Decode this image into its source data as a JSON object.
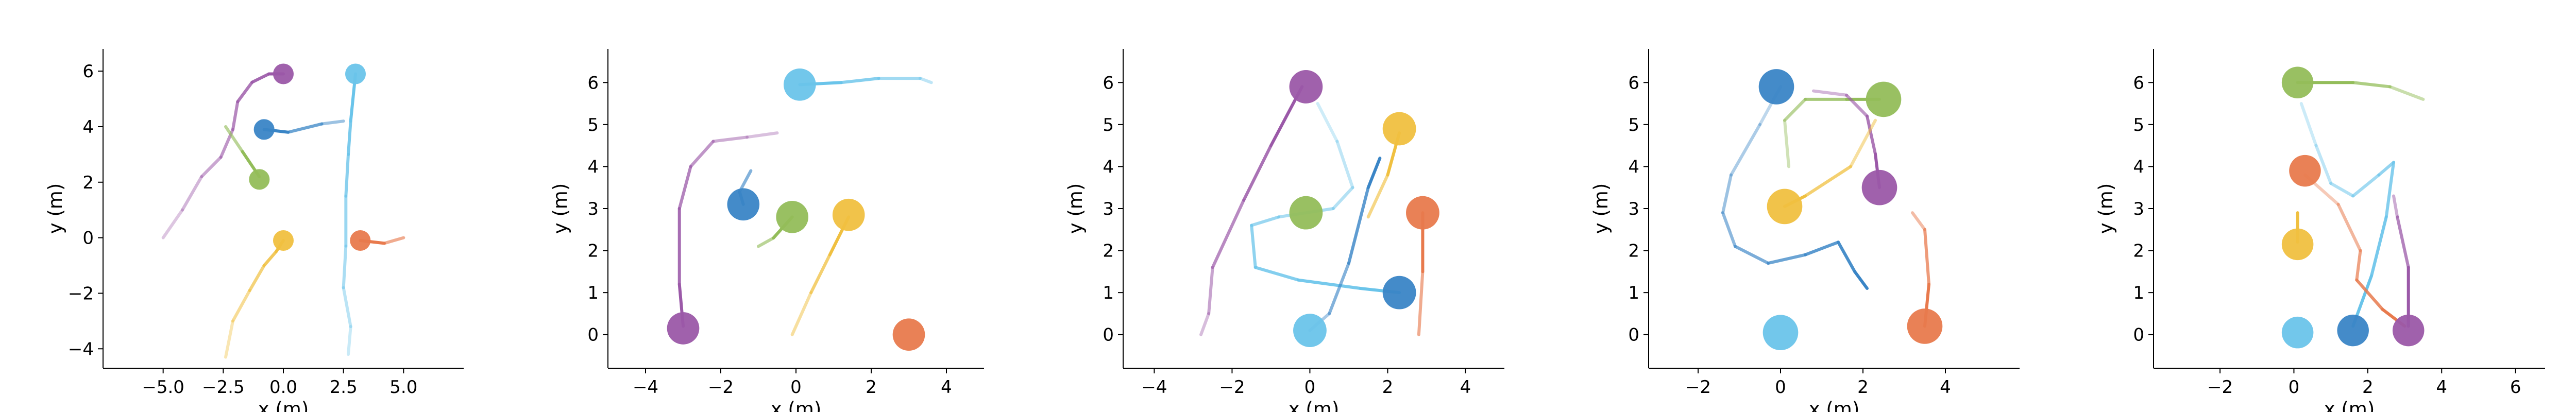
{
  "chart_data": [
    {
      "type": "line",
      "xlabel": "x (m)",
      "ylabel": "y (m)",
      "xlim": [
        -7.5,
        7.5
      ],
      "ylim": [
        -4.7,
        6.8
      ],
      "xticks": [
        -5.0,
        -2.5,
        0.0,
        2.5,
        5.0
      ],
      "xtick_labels": [
        "−5.0",
        "−2.5",
        "0.0",
        "2.5",
        "5.0"
      ],
      "yticks": [
        -4,
        -2,
        0,
        2,
        4,
        6
      ],
      "ytick_labels": [
        "−4",
        "−2",
        "0",
        "2",
        "4",
        "6"
      ],
      "grid": false,
      "agents": [
        {
          "color": "#9b59a8",
          "path": [
            [
              -5.0,
              0.0
            ],
            [
              -4.2,
              1.0
            ],
            [
              -3.4,
              2.2
            ],
            [
              -2.6,
              2.9
            ],
            [
              -2.1,
              3.9
            ],
            [
              -1.9,
              4.9
            ],
            [
              -1.3,
              5.6
            ],
            [
              -0.6,
              5.9
            ],
            [
              0.0,
              5.9
            ]
          ]
        },
        {
          "color": "#6ac4ea",
          "path": [
            [
              2.7,
              -4.2
            ],
            [
              2.8,
              -3.2
            ],
            [
              2.5,
              -1.8
            ],
            [
              2.6,
              -0.3
            ],
            [
              2.6,
              1.5
            ],
            [
              2.7,
              3.0
            ],
            [
              2.8,
              4.2
            ],
            [
              3.0,
              5.9
            ]
          ]
        },
        {
          "color": "#3a85c6",
          "path": [
            [
              2.5,
              4.2
            ],
            [
              1.6,
              4.1
            ],
            [
              0.2,
              3.8
            ],
            [
              -0.8,
              3.9
            ]
          ]
        },
        {
          "color": "#93bd5a",
          "path": [
            [
              -2.4,
              4.0
            ],
            [
              -1.7,
              3.1
            ],
            [
              -1.0,
              2.2
            ]
          ]
        },
        {
          "color": "#f0c040",
          "path": [
            [
              -2.4,
              -4.3
            ],
            [
              -2.1,
              -3.0
            ],
            [
              -1.4,
              -1.9
            ],
            [
              -0.8,
              -1.0
            ],
            [
              -0.3,
              -0.5
            ],
            [
              0.0,
              -0.1
            ]
          ]
        },
        {
          "color": "#e87a4d",
          "path": [
            [
              5.0,
              0.0
            ],
            [
              4.2,
              -0.2
            ],
            [
              3.2,
              -0.1
            ]
          ]
        }
      ],
      "markers": [
        {
          "x": 0.0,
          "y": 5.9,
          "color": "#9b59a8",
          "r": 0.55
        },
        {
          "x": 3.0,
          "y": 5.9,
          "color": "#6ac4ea",
          "r": 0.55
        },
        {
          "x": -0.8,
          "y": 3.9,
          "color": "#3a85c6",
          "r": 0.55
        },
        {
          "x": -1.0,
          "y": 2.1,
          "color": "#93bd5a",
          "r": 0.55
        },
        {
          "x": 0.0,
          "y": -0.1,
          "color": "#f0c040",
          "r": 0.55
        },
        {
          "x": 3.2,
          "y": -0.1,
          "color": "#e87a4d",
          "r": 0.55
        }
      ]
    },
    {
      "type": "line",
      "xlabel": "x (m)",
      "ylabel": "y (m)",
      "xlim": [
        -5.0,
        5.0
      ],
      "ylim": [
        -0.8,
        6.8
      ],
      "xticks": [
        -4,
        -2,
        0,
        2,
        4
      ],
      "xtick_labels": [
        "−4",
        "−2",
        "0",
        "2",
        "4"
      ],
      "yticks": [
        0,
        1,
        2,
        3,
        4,
        5,
        6
      ],
      "ytick_labels": [
        "0",
        "1",
        "2",
        "3",
        "4",
        "5",
        "6"
      ],
      "grid": false,
      "agents": [
        {
          "color": "#6ac4ea",
          "path": [
            [
              3.6,
              6.0
            ],
            [
              3.3,
              6.1
            ],
            [
              2.2,
              6.1
            ],
            [
              1.2,
              6.0
            ],
            [
              0.1,
              5.95
            ]
          ]
        },
        {
          "color": "#9b59a8",
          "path": [
            [
              -0.5,
              4.8
            ],
            [
              -1.3,
              4.7
            ],
            [
              -2.2,
              4.6
            ],
            [
              -2.8,
              4.0
            ],
            [
              -3.1,
              3.0
            ],
            [
              -3.1,
              1.2
            ],
            [
              -3.0,
              0.2
            ]
          ]
        },
        {
          "color": "#3a85c6",
          "path": [
            [
              -1.2,
              3.9
            ],
            [
              -1.5,
              3.4
            ],
            [
              -1.4,
              3.1
            ]
          ]
        },
        {
          "color": "#93bd5a",
          "path": [
            [
              -1.0,
              2.1
            ],
            [
              -0.6,
              2.3
            ],
            [
              -0.1,
              2.8
            ]
          ]
        },
        {
          "color": "#f0c040",
          "path": [
            [
              -0.1,
              0.0
            ],
            [
              0.4,
              1.0
            ],
            [
              0.9,
              1.9
            ],
            [
              1.4,
              2.8
            ]
          ]
        }
      ],
      "markers": [
        {
          "x": 0.1,
          "y": 5.95,
          "color": "#6ac4ea",
          "r": 0.55
        },
        {
          "x": -1.4,
          "y": 3.1,
          "color": "#3a85c6",
          "r": 0.55
        },
        {
          "x": -0.1,
          "y": 2.8,
          "color": "#93bd5a",
          "r": 0.55
        },
        {
          "x": 1.4,
          "y": 2.85,
          "color": "#f0c040",
          "r": 0.55
        },
        {
          "x": -3.0,
          "y": 0.15,
          "color": "#9b59a8",
          "r": 0.55
        },
        {
          "x": 3.0,
          "y": 0.0,
          "color": "#e87a4d",
          "r": 0.55
        }
      ]
    },
    {
      "type": "line",
      "xlabel": "x (m)",
      "ylabel": "y (m)",
      "xlim": [
        -4.8,
        5.0
      ],
      "ylim": [
        -0.8,
        6.8
      ],
      "xticks": [
        -4,
        -2,
        0,
        2,
        4
      ],
      "xtick_labels": [
        "−4",
        "−2",
        "0",
        "2",
        "4"
      ],
      "yticks": [
        0,
        1,
        2,
        3,
        4,
        5,
        6
      ],
      "ytick_labels": [
        "0",
        "1",
        "2",
        "3",
        "4",
        "5",
        "6"
      ],
      "grid": false,
      "agents": [
        {
          "color": "#9b59a8",
          "path": [
            [
              -2.8,
              0.0
            ],
            [
              -2.6,
              0.5
            ],
            [
              -2.5,
              1.6
            ],
            [
              -1.7,
              3.2
            ],
            [
              -1.0,
              4.5
            ],
            [
              -0.2,
              5.9
            ]
          ]
        },
        {
          "color": "#6ac4ea",
          "path": [
            [
              0.2,
              5.5
            ],
            [
              0.7,
              4.6
            ],
            [
              1.1,
              3.5
            ],
            [
              0.6,
              3.0
            ],
            [
              -0.8,
              2.8
            ],
            [
              -1.5,
              2.6
            ],
            [
              -1.4,
              1.6
            ],
            [
              -0.3,
              1.3
            ],
            [
              1.3,
              1.1
            ],
            [
              2.3,
              1.0
            ]
          ]
        },
        {
          "color": "#f0c040",
          "path": [
            [
              1.5,
              2.8
            ],
            [
              2.0,
              3.8
            ],
            [
              2.3,
              4.8
            ]
          ]
        },
        {
          "color": "#3a85c6",
          "path": [
            [
              0.0,
              0.1
            ],
            [
              0.5,
              0.5
            ],
            [
              1.0,
              1.7
            ],
            [
              1.5,
              3.5
            ],
            [
              1.8,
              4.2
            ]
          ]
        },
        {
          "color": "#e87a4d",
          "path": [
            [
              2.8,
              0.0
            ],
            [
              2.9,
              1.5
            ],
            [
              2.9,
              2.9
            ]
          ]
        }
      ],
      "markers": [
        {
          "x": -0.1,
          "y": 5.9,
          "color": "#9b59a8",
          "r": 0.55
        },
        {
          "x": 2.3,
          "y": 4.9,
          "color": "#f0c040",
          "r": 0.55
        },
        {
          "x": -0.1,
          "y": 2.9,
          "color": "#93bd5a",
          "r": 0.55
        },
        {
          "x": 2.9,
          "y": 2.9,
          "color": "#e87a4d",
          "r": 0.55
        },
        {
          "x": 2.3,
          "y": 1.0,
          "color": "#3a85c6",
          "r": 0.55
        },
        {
          "x": 0.0,
          "y": 0.1,
          "color": "#6ac4ea",
          "r": 0.55
        }
      ]
    },
    {
      "type": "line",
      "xlabel": "x (m)",
      "ylabel": "y (m)",
      "xlim": [
        -3.2,
        5.8
      ],
      "ylim": [
        -0.8,
        6.8
      ],
      "xticks": [
        -2,
        0,
        2,
        4
      ],
      "xtick_labels": [
        "−2",
        "0",
        "2",
        "4"
      ],
      "yticks": [
        0,
        1,
        2,
        3,
        4,
        5,
        6
      ],
      "ytick_labels": [
        "0",
        "1",
        "2",
        "3",
        "4",
        "5",
        "6"
      ],
      "grid": false,
      "agents": [
        {
          "color": "#3a85c6",
          "path": [
            [
              0.0,
              5.9
            ],
            [
              -0.5,
              5.0
            ],
            [
              -1.2,
              3.8
            ],
            [
              -1.4,
              2.9
            ],
            [
              -1.1,
              2.1
            ],
            [
              -0.3,
              1.7
            ],
            [
              0.6,
              1.9
            ],
            [
              1.4,
              2.2
            ],
            [
              1.8,
              1.5
            ],
            [
              2.1,
              1.1
            ]
          ]
        },
        {
          "color": "#93bd5a",
          "path": [
            [
              0.2,
              4.0
            ],
            [
              0.1,
              5.1
            ],
            [
              0.6,
              5.6
            ],
            [
              1.6,
              5.6
            ],
            [
              2.4,
              5.6
            ]
          ]
        },
        {
          "color": "#9b59a8",
          "path": [
            [
              0.8,
              5.8
            ],
            [
              1.6,
              5.7
            ],
            [
              2.1,
              5.2
            ],
            [
              2.3,
              4.3
            ],
            [
              2.4,
              3.5
            ]
          ]
        },
        {
          "color": "#f0c040",
          "path": [
            [
              2.3,
              5.1
            ],
            [
              1.7,
              4.0
            ],
            [
              0.6,
              3.3
            ],
            [
              0.1,
              3.05
            ]
          ]
        },
        {
          "color": "#e87a4d",
          "path": [
            [
              3.2,
              2.9
            ],
            [
              3.5,
              2.5
            ],
            [
              3.6,
              1.2
            ],
            [
              3.5,
              0.2
            ]
          ]
        }
      ],
      "markers": [
        {
          "x": -0.1,
          "y": 5.9,
          "color": "#3a85c6",
          "r": 0.55
        },
        {
          "x": 2.5,
          "y": 5.6,
          "color": "#93bd5a",
          "r": 0.55
        },
        {
          "x": 2.4,
          "y": 3.5,
          "color": "#9b59a8",
          "r": 0.55
        },
        {
          "x": 0.1,
          "y": 3.05,
          "color": "#f0c040",
          "r": 0.55
        },
        {
          "x": 3.5,
          "y": 0.2,
          "color": "#e87a4d",
          "r": 0.55
        },
        {
          "x": 0.0,
          "y": 0.05,
          "color": "#6ac4ea",
          "r": 0.55
        }
      ]
    },
    {
      "type": "line",
      "xlabel": "x (m)",
      "ylabel": "y (m)",
      "xlim": [
        -3.8,
        6.8
      ],
      "ylim": [
        -0.8,
        6.8
      ],
      "xticks": [
        -2,
        0,
        2,
        4,
        6
      ],
      "xtick_labels": [
        "−2",
        "0",
        "2",
        "4",
        "6"
      ],
      "yticks": [
        0,
        1,
        2,
        3,
        4,
        5,
        6
      ],
      "ytick_labels": [
        "0",
        "1",
        "2",
        "3",
        "4",
        "5",
        "6"
      ],
      "grid": false,
      "agents": [
        {
          "color": "#93bd5a",
          "path": [
            [
              3.5,
              5.6
            ],
            [
              2.6,
              5.9
            ],
            [
              1.6,
              6.0
            ],
            [
              0.1,
              6.0
            ]
          ]
        },
        {
          "color": "#6ac4ea",
          "path": [
            [
              0.2,
              5.5
            ],
            [
              0.6,
              4.5
            ],
            [
              1.0,
              3.6
            ],
            [
              1.6,
              3.3
            ],
            [
              2.3,
              3.8
            ],
            [
              2.7,
              4.1
            ],
            [
              2.5,
              2.8
            ],
            [
              2.1,
              1.4
            ],
            [
              1.6,
              0.2
            ]
          ]
        },
        {
          "color": "#9b59a8",
          "path": [
            [
              2.7,
              3.3
            ],
            [
              2.8,
              2.8
            ],
            [
              3.1,
              1.6
            ],
            [
              3.1,
              0.2
            ]
          ]
        },
        {
          "color": "#e87a4d",
          "path": [
            [
              0.3,
              3.8
            ],
            [
              1.2,
              3.1
            ],
            [
              1.8,
              2.0
            ],
            [
              1.7,
              1.3
            ],
            [
              2.4,
              0.6
            ],
            [
              3.0,
              0.2
            ]
          ]
        },
        {
          "color": "#f0c040",
          "path": [
            [
              0.1,
              2.2
            ],
            [
              0.1,
              2.9
            ]
          ]
        }
      ],
      "markers": [
        {
          "x": 0.1,
          "y": 6.0,
          "color": "#93bd5a",
          "r": 0.55
        },
        {
          "x": 0.3,
          "y": 3.9,
          "color": "#e87a4d",
          "r": 0.55
        },
        {
          "x": 0.1,
          "y": 2.15,
          "color": "#f0c040",
          "r": 0.55
        },
        {
          "x": 0.1,
          "y": 0.05,
          "color": "#6ac4ea",
          "r": 0.55
        },
        {
          "x": 1.6,
          "y": 0.1,
          "color": "#3a85c6",
          "r": 0.55
        },
        {
          "x": 3.1,
          "y": 0.1,
          "color": "#9b59a8",
          "r": 0.55
        }
      ]
    }
  ]
}
